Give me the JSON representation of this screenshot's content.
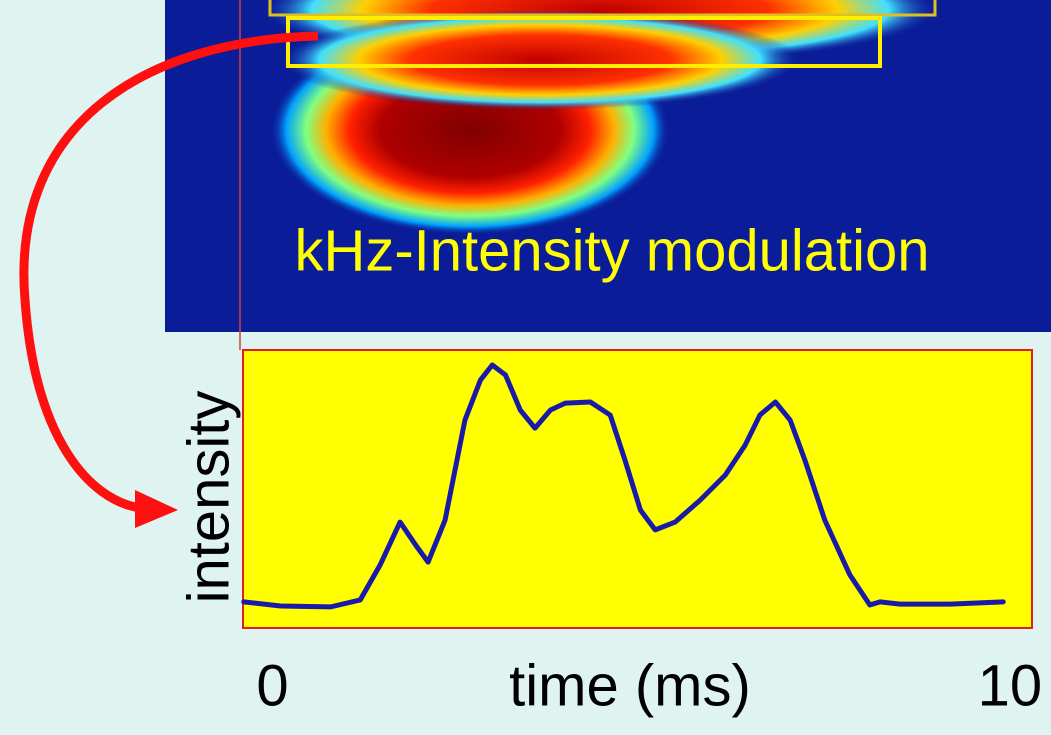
{
  "chart_data": {
    "type": "line",
    "annotation": "kHz-Intensity modulation",
    "xlabel": "time (ms)",
    "ylabel": "intensity",
    "xlim": [
      -0.4,
      10.3
    ],
    "xticks": [
      0,
      10
    ],
    "ylim": [
      0,
      100
    ],
    "color": "#1a1aa8",
    "x": [
      -0.39,
      0.11,
      0.79,
      1.19,
      1.46,
      1.73,
      1.94,
      2.11,
      2.34,
      2.61,
      2.82,
      2.98,
      3.16,
      3.36,
      3.56,
      3.77,
      3.97,
      4.31,
      4.58,
      4.78,
      4.99,
      5.19,
      5.46,
      5.8,
      6.14,
      6.41,
      6.61,
      6.82,
      7.02,
      7.22,
      7.49,
      7.83,
      8.1,
      8.24,
      8.51,
      9.19,
      9.91
    ],
    "values": [
      9.4,
      7.9,
      7.6,
      10.1,
      22.7,
      38.1,
      29.9,
      23.7,
      38.8,
      74.8,
      89.2,
      94.6,
      91.0,
      78.4,
      71.9,
      78.4,
      80.9,
      81.3,
      76.6,
      60.4,
      42.4,
      35.3,
      38.1,
      46.0,
      55.0,
      65.8,
      76.6,
      81.3,
      74.8,
      60.4,
      38.8,
      19.1,
      8.3,
      9.4,
      8.6,
      8.6,
      9.4
    ]
  }
}
